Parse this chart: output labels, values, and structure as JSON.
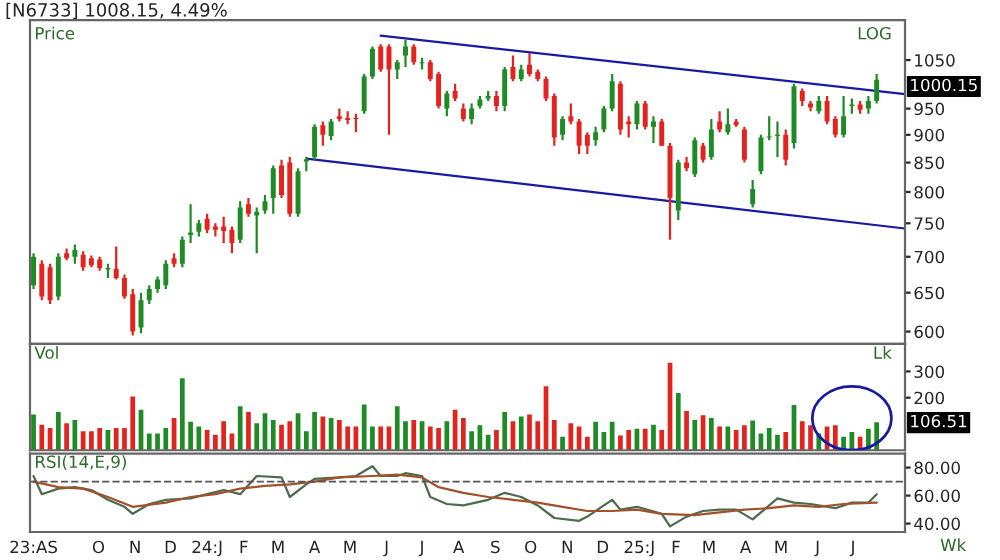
{
  "chart_data": [
    {
      "type": "candlestick",
      "title": "[N6733] 1008.15, 4.49%",
      "log": true,
      "tick_labels": "y",
      "colors": [
        "#1f8b24",
        "#e3231d",
        "#e3231d",
        "#1f8b24",
        "#e3231d",
        "#1f8b24",
        "#e3231d",
        "#e3231d",
        "#e3231d",
        "#1f8b24",
        "#e3231d",
        "#e3231d",
        "#e3231d",
        "#1f8b24",
        "#1f8b24",
        "#1f8b24",
        "#1f8b24",
        "#e3231d",
        "#1f8b24",
        "#1f8b24",
        "#1f8b24",
        "#e3231d",
        "#e3231d",
        "#e3231d",
        "#e3231d",
        "#1f8b24",
        "#e3231d",
        "#1f8b24",
        "#1f8b24",
        "#1f8b24",
        "#e3231d",
        "#e3231d",
        "#1f8b24",
        "#1f8b24",
        "#1f8b24",
        "#e3231d",
        "#1f8b24",
        "#e3231d",
        "#e3231d",
        "#e3231d",
        "#1f8b24",
        "#1f8b24",
        "#e3231d",
        "#e3231d",
        "#1f8b24",
        "#1f8b24",
        "#e3231d",
        "#1f8b24",
        "#e3231d",
        "#e3231d",
        "#1f8b24",
        "#e3231d",
        "#e3231d",
        "#1f8b24",
        "#1f8b24",
        "#1f8b24",
        "#e3231d",
        "#1f8b24",
        "#e3231d",
        "#1f8b24",
        "#e3231d",
        "#e3231d",
        "#e3231d",
        "#e3231d",
        "#1f8b24",
        "#e3231d",
        "#e3231d",
        "#e3231d",
        "#1f8b24",
        "#1f8b24",
        "#1f8b24",
        "#e3231d",
        "#e3231d",
        "#1f8b24",
        "#e3231d",
        "#1f8b24",
        "#e3231d",
        "#e3231d",
        "#1f8b24",
        "#e3231d",
        "#1f8b24",
        "#e3231d",
        "#1f8b24",
        "#e3231d",
        "#1f8b24",
        "#e3231d",
        "#e3231d",
        "#1f8b24",
        "#1f8b24",
        "#1f8b24",
        "#1f8b24",
        "#e3231d",
        "#1f8b24",
        "#e3231d",
        "#e3231d",
        "#1f8b24",
        "#e3231d",
        "#e3231d",
        "#1f8b24",
        "#1f8b24",
        "#e3231d",
        "#1f8b24",
        "#1f8b24"
      ],
      "x": [
        "2023-08-07",
        "2023-08-14",
        "2023-08-21",
        "2023-08-28",
        "2023-09-04",
        "2023-09-11",
        "2023-09-18",
        "2023-09-25",
        "2023-10-02",
        "2023-10-09",
        "2023-10-16",
        "2023-10-23",
        "2023-10-30",
        "2023-11-06",
        "2023-11-13",
        "2023-11-20",
        "2023-11-27",
        "2023-12-04",
        "2023-12-11",
        "2023-12-18",
        "2023-12-25",
        "2024-01-01",
        "2024-01-08",
        "2024-01-15",
        "2024-01-22",
        "2024-01-29",
        "2024-02-05",
        "2024-02-12",
        "2024-02-19",
        "2024-02-26",
        "2024-03-04",
        "2024-03-11",
        "2024-03-18",
        "2024-03-25",
        "2024-04-01",
        "2024-04-08",
        "2024-04-15",
        "2024-04-22",
        "2024-04-29",
        "2024-05-06",
        "2024-05-13",
        "2024-05-20",
        "2024-05-27",
        "2024-06-03",
        "2024-06-10",
        "2024-06-17",
        "2024-06-24",
        "2024-07-01",
        "2024-07-08",
        "2024-07-15",
        "2024-07-22",
        "2024-07-29",
        "2024-08-05",
        "2024-08-12",
        "2024-08-19",
        "2024-08-26",
        "2024-09-02",
        "2024-09-09",
        "2024-09-16",
        "2024-09-23",
        "2024-09-30",
        "2024-10-07",
        "2024-10-14",
        "2024-10-21",
        "2024-10-28",
        "2024-11-04",
        "2024-11-11",
        "2024-11-18",
        "2024-11-25",
        "2024-12-02",
        "2024-12-09",
        "2024-12-16",
        "2024-12-23",
        "2024-12-30",
        "2025-01-06",
        "2025-01-13",
        "2025-01-20",
        "2025-01-27",
        "2025-02-03",
        "2025-02-10",
        "2025-02-17",
        "2025-02-24",
        "2025-03-03",
        "2025-03-10",
        "2025-03-17",
        "2025-03-24",
        "2025-03-31",
        "2025-04-07",
        "2025-04-14",
        "2025-04-21",
        "2025-04-28",
        "2025-05-05",
        "2025-05-12",
        "2025-05-19",
        "2025-05-26",
        "2025-06-02",
        "2025-06-09",
        "2025-06-16",
        "2025-06-23",
        "2025-06-30",
        "2025-07-07",
        "2025-07-14",
        "2025-07-21"
      ],
      "ohlc": [
        [
          660,
          705,
          655,
          700
        ],
        [
          690,
          695,
          640,
          645
        ],
        [
          685,
          690,
          635,
          640
        ],
        [
          645,
          705,
          640,
          700
        ],
        [
          705,
          712,
          695,
          698
        ],
        [
          700,
          718,
          690,
          710
        ],
        [
          703,
          708,
          680,
          685
        ],
        [
          698,
          702,
          685,
          688
        ],
        [
          696,
          700,
          680,
          684
        ],
        [
          682,
          690,
          670,
          684
        ],
        [
          683,
          715,
          668,
          670
        ],
        [
          670,
          675,
          642,
          645
        ],
        [
          648,
          655,
          595,
          600
        ],
        [
          605,
          650,
          598,
          640
        ],
        [
          640,
          660,
          635,
          655
        ],
        [
          655,
          672,
          650,
          668
        ],
        [
          660,
          695,
          655,
          690
        ],
        [
          698,
          705,
          685,
          690
        ],
        [
          690,
          730,
          685,
          725
        ],
        [
          732,
          780,
          720,
          736
        ],
        [
          737,
          755,
          730,
          750
        ],
        [
          757,
          765,
          735,
          740
        ],
        [
          745,
          750,
          730,
          740
        ],
        [
          745,
          760,
          720,
          738
        ],
        [
          740,
          745,
          705,
          720
        ],
        [
          725,
          785,
          720,
          775
        ],
        [
          780,
          790,
          760,
          765
        ],
        [
          762,
          775,
          705,
          768
        ],
        [
          770,
          795,
          765,
          785
        ],
        [
          790,
          845,
          765,
          840
        ],
        [
          845,
          855,
          790,
          795
        ],
        [
          850,
          860,
          760,
          765
        ],
        [
          765,
          840,
          760,
          835
        ],
        [
          852,
          860,
          835,
          856
        ],
        [
          860,
          920,
          855,
          915
        ],
        [
          918,
          925,
          880,
          900
        ],
        [
          898,
          930,
          890,
          925
        ],
        [
          935,
          950,
          925,
          930
        ],
        [
          932,
          945,
          920,
          928
        ],
        [
          932,
          940,
          905,
          930
        ],
        [
          945,
          1020,
          940,
          1015
        ],
        [
          1015,
          1080,
          1010,
          1075
        ],
        [
          1080,
          1085,
          1025,
          1030
        ],
        [
          1080,
          1085,
          900,
          1030
        ],
        [
          1030,
          1050,
          1010,
          1045
        ],
        [
          1060,
          1095,
          1035,
          1080
        ],
        [
          1080,
          1085,
          1040,
          1045
        ],
        [
          1043,
          1055,
          1030,
          1045
        ],
        [
          1045,
          1050,
          1005,
          1010
        ],
        [
          1020,
          1025,
          950,
          955
        ],
        [
          950,
          985,
          935,
          980
        ],
        [
          985,
          1000,
          965,
          970
        ],
        [
          950,
          960,
          925,
          930
        ],
        [
          930,
          960,
          920,
          950
        ],
        [
          955,
          975,
          950,
          968
        ],
        [
          970,
          985,
          965,
          975
        ],
        [
          975,
          985,
          945,
          955
        ],
        [
          955,
          1035,
          945,
          1030
        ],
        [
          1035,
          1060,
          1005,
          1010
        ],
        [
          1010,
          1040,
          1005,
          1030
        ],
        [
          1040,
          1065,
          1015,
          1020
        ],
        [
          1025,
          1030,
          1005,
          1010
        ],
        [
          1010,
          1015,
          965,
          970
        ],
        [
          975,
          980,
          880,
          895
        ],
        [
          900,
          935,
          890,
          930
        ],
        [
          935,
          960,
          920,
          925
        ],
        [
          925,
          930,
          865,
          880
        ],
        [
          900,
          905,
          865,
          880
        ],
        [
          890,
          915,
          880,
          905
        ],
        [
          910,
          955,
          905,
          950
        ],
        [
          950,
          1020,
          945,
          1005
        ],
        [
          1000,
          1005,
          900,
          910
        ],
        [
          925,
          935,
          895,
          920
        ],
        [
          920,
          965,
          910,
          960
        ],
        [
          960,
          965,
          910,
          915
        ],
        [
          915,
          935,
          885,
          925
        ],
        [
          925,
          930,
          880,
          880
        ],
        [
          880,
          885,
          725,
          790
        ],
        [
          770,
          855,
          755,
          850
        ],
        [
          850,
          860,
          835,
          840
        ],
        [
          830,
          895,
          825,
          890
        ],
        [
          880,
          885,
          850,
          855
        ],
        [
          860,
          930,
          855,
          910
        ],
        [
          925,
          945,
          905,
          910
        ],
        [
          905,
          950,
          900,
          920
        ],
        [
          925,
          930,
          915,
          918
        ],
        [
          910,
          915,
          850,
          855
        ],
        [
          780,
          820,
          775,
          805
        ],
        [
          835,
          900,
          830,
          895
        ],
        [
          895,
          935,
          890,
          897
        ],
        [
          898,
          925,
          860,
          900
        ],
        [
          900,
          910,
          845,
          855
        ],
        [
          885,
          1000,
          875,
          995
        ],
        [
          985,
          990,
          955,
          965
        ],
        [
          960,
          965,
          945,
          952
        ],
        [
          945,
          975,
          940,
          965
        ],
        [
          965,
          975,
          920,
          925
        ],
        [
          930,
          935,
          895,
          900
        ],
        [
          900,
          975,
          895,
          935
        ],
        [
          955,
          970,
          940,
          958
        ],
        [
          958,
          965,
          940,
          948
        ],
        [
          950,
          975,
          940,
          965
        ],
        [
          965,
          1020,
          960,
          1008.15
        ]
      ],
      "series": [
        {
          "type": "line",
          "color": "#1a1aa0",
          "x": [
            "2024-05-27",
            "2025-08-14"
          ],
          "values": [
            1104,
            979
          ]
        },
        {
          "type": "line",
          "color": "#1a1aa0",
          "x": [
            "2024-03-25",
            "2025-08-14"
          ],
          "values": [
            857,
            742
          ]
        }
      ],
      "xlim": [
        "2023-08-04",
        "2025-08-14"
      ],
      "ylim": [
        585,
        1140
      ],
      "yticks": [
        600,
        650,
        700,
        750,
        800,
        850,
        900,
        950,
        1050
      ],
      "annotations": [
        "Price",
        "LOG",
        "1000.15"
      ]
    },
    {
      "type": "bar",
      "tick_labels": "y",
      "x": [
        "2023-08-07",
        "2023-08-14",
        "2023-08-21",
        "2023-08-28",
        "2023-09-04",
        "2023-09-11",
        "2023-09-18",
        "2023-09-25",
        "2023-10-02",
        "2023-10-09",
        "2023-10-16",
        "2023-10-23",
        "2023-10-30",
        "2023-11-06",
        "2023-11-13",
        "2023-11-20",
        "2023-11-27",
        "2023-12-04",
        "2023-12-11",
        "2023-12-18",
        "2023-12-25",
        "2024-01-01",
        "2024-01-08",
        "2024-01-15",
        "2024-01-22",
        "2024-01-29",
        "2024-02-05",
        "2024-02-12",
        "2024-02-19",
        "2024-02-26",
        "2024-03-04",
        "2024-03-11",
        "2024-03-18",
        "2024-03-25",
        "2024-04-01",
        "2024-04-08",
        "2024-04-15",
        "2024-04-22",
        "2024-04-29",
        "2024-05-06",
        "2024-05-13",
        "2024-05-20",
        "2024-05-27",
        "2024-06-03",
        "2024-06-10",
        "2024-06-17",
        "2024-06-24",
        "2024-07-01",
        "2024-07-08",
        "2024-07-15",
        "2024-07-22",
        "2024-07-29",
        "2024-08-05",
        "2024-08-12",
        "2024-08-19",
        "2024-08-26",
        "2024-09-02",
        "2024-09-09",
        "2024-09-16",
        "2024-09-23",
        "2024-09-30",
        "2024-10-07",
        "2024-10-14",
        "2024-10-21",
        "2024-10-28",
        "2024-11-04",
        "2024-11-11",
        "2024-11-18",
        "2024-11-25",
        "2024-12-02",
        "2024-12-09",
        "2024-12-16",
        "2024-12-23",
        "2024-12-30",
        "2025-01-06",
        "2025-01-13",
        "2025-01-20",
        "2025-01-27",
        "2025-02-03",
        "2025-02-10",
        "2025-02-17",
        "2025-02-24",
        "2025-03-03",
        "2025-03-10",
        "2025-03-17",
        "2025-03-24",
        "2025-03-31",
        "2025-04-07",
        "2025-04-14",
        "2025-04-21",
        "2025-04-28",
        "2025-05-05",
        "2025-05-12",
        "2025-05-19",
        "2025-05-26",
        "2025-06-02",
        "2025-06-09",
        "2025-06-16",
        "2025-06-23",
        "2025-06-30",
        "2025-07-07",
        "2025-07-14",
        "2025-07-21"
      ],
      "values": [
        136,
        97,
        85,
        146,
        103,
        115,
        72,
        72,
        85,
        77,
        85,
        85,
        205,
        154,
        64,
        64,
        85,
        123,
        274,
        108,
        90,
        77,
        59,
        110,
        64,
        167,
        146,
        103,
        141,
        115,
        97,
        110,
        141,
        72,
        146,
        128,
        123,
        115,
        90,
        90,
        174,
        90,
        90,
        90,
        167,
        110,
        115,
        110,
        90,
        85,
        110,
        154,
        123,
        72,
        95,
        59,
        77,
        146,
        110,
        128,
        136,
        110,
        244,
        115,
        51,
        103,
        90,
        51,
        108,
        69,
        108,
        56,
        77,
        82,
        82,
        97,
        77,
        333,
        218,
        149,
        115,
        133,
        123,
        90,
        90,
        77,
        95,
        113,
        64,
        85,
        59,
        69,
        172,
        110,
        95,
        64,
        90,
        95,
        51,
        69,
        51,
        82,
        107
      ],
      "colors": [
        "#1f8b24",
        "#e3231d",
        "#e3231d",
        "#1f8b24",
        "#e3231d",
        "#1f8b24",
        "#e3231d",
        "#e3231d",
        "#e3231d",
        "#1f8b24",
        "#e3231d",
        "#e3231d",
        "#e3231d",
        "#1f8b24",
        "#1f8b24",
        "#1f8b24",
        "#1f8b24",
        "#e3231d",
        "#1f8b24",
        "#1f8b24",
        "#1f8b24",
        "#e3231d",
        "#e3231d",
        "#e3231d",
        "#e3231d",
        "#1f8b24",
        "#e3231d",
        "#1f8b24",
        "#1f8b24",
        "#1f8b24",
        "#e3231d",
        "#e3231d",
        "#1f8b24",
        "#1f8b24",
        "#1f8b24",
        "#e3231d",
        "#1f8b24",
        "#e3231d",
        "#e3231d",
        "#e3231d",
        "#1f8b24",
        "#1f8b24",
        "#e3231d",
        "#e3231d",
        "#1f8b24",
        "#1f8b24",
        "#e3231d",
        "#1f8b24",
        "#e3231d",
        "#e3231d",
        "#1f8b24",
        "#e3231d",
        "#e3231d",
        "#1f8b24",
        "#1f8b24",
        "#1f8b24",
        "#e3231d",
        "#1f8b24",
        "#e3231d",
        "#1f8b24",
        "#e3231d",
        "#e3231d",
        "#e3231d",
        "#e3231d",
        "#1f8b24",
        "#e3231d",
        "#e3231d",
        "#e3231d",
        "#1f8b24",
        "#1f8b24",
        "#1f8b24",
        "#e3231d",
        "#e3231d",
        "#1f8b24",
        "#e3231d",
        "#1f8b24",
        "#e3231d",
        "#e3231d",
        "#1f8b24",
        "#e3231d",
        "#1f8b24",
        "#e3231d",
        "#1f8b24",
        "#e3231d",
        "#1f8b24",
        "#e3231d",
        "#e3231d",
        "#1f8b24",
        "#1f8b24",
        "#1f8b24",
        "#1f8b24",
        "#e3231d",
        "#1f8b24",
        "#e3231d",
        "#e3231d",
        "#1f8b24",
        "#e3231d",
        "#e3231d",
        "#1f8b24",
        "#1f8b24",
        "#e3231d",
        "#1f8b24",
        "#1f8b24"
      ],
      "xlim": [
        "2023-08-04",
        "2025-08-14"
      ],
      "ylim": [
        0,
        405
      ],
      "yticks": [
        200,
        300
      ],
      "annotations": [
        "Vol",
        "Lk",
        "106.51"
      ]
    },
    {
      "type": "line",
      "xlim": [
        "2023-08-04",
        "2025-08-14"
      ],
      "ylim": [
        34,
        90
      ],
      "yticks": [
        {
          "value": 40,
          "label": "40.00"
        },
        {
          "value": 60,
          "label": "60.00"
        },
        {
          "value": 80,
          "label": "80.00"
        }
      ],
      "xticks": [
        {
          "value": "2023-08-07",
          "label": "23:AS"
        },
        {
          "value": "2023-10-01",
          "label": "O"
        },
        {
          "value": "2023-11-01",
          "label": "N"
        },
        {
          "value": "2023-12-01",
          "label": "D"
        },
        {
          "value": "2024-01-01",
          "label": "24:J"
        },
        {
          "value": "2024-02-01",
          "label": "F"
        },
        {
          "value": "2024-03-01",
          "label": "M"
        },
        {
          "value": "2024-04-01",
          "label": "A"
        },
        {
          "value": "2024-05-01",
          "label": "M"
        },
        {
          "value": "2024-06-01",
          "label": "J"
        },
        {
          "value": "2024-07-01",
          "label": "J"
        },
        {
          "value": "2024-08-01",
          "label": "A"
        },
        {
          "value": "2024-09-01",
          "label": "S"
        },
        {
          "value": "2024-10-01",
          "label": "O"
        },
        {
          "value": "2024-11-01",
          "label": "N"
        },
        {
          "value": "2024-12-01",
          "label": "D"
        },
        {
          "value": "2025-01-01",
          "label": "25:J"
        },
        {
          "value": "2025-02-01",
          "label": "F"
        },
        {
          "value": "2025-03-01",
          "label": "M"
        },
        {
          "value": "2025-04-01",
          "label": "A"
        },
        {
          "value": "2025-05-01",
          "label": "M"
        },
        {
          "value": "2025-06-01",
          "label": "J"
        },
        {
          "value": "2025-07-01",
          "label": "J"
        }
      ],
      "series": [
        {
          "color": "#4d6b4d",
          "x": [
            "2023-08-07",
            "2023-08-14",
            "2023-08-28",
            "2023-09-11",
            "2023-09-25",
            "2023-10-09",
            "2023-10-23",
            "2023-10-30",
            "2023-11-13",
            "2023-11-27",
            "2023-12-18",
            "2024-01-01",
            "2024-01-15",
            "2024-01-29",
            "2024-02-12",
            "2024-03-04",
            "2024-03-11",
            "2024-03-25",
            "2024-04-01",
            "2024-04-22",
            "2024-05-06",
            "2024-05-20",
            "2024-05-27",
            "2024-06-10",
            "2024-06-17",
            "2024-07-01",
            "2024-07-08",
            "2024-07-22",
            "2024-08-05",
            "2024-08-26",
            "2024-09-09",
            "2024-09-23",
            "2024-10-07",
            "2024-10-21",
            "2024-11-11",
            "2024-11-18",
            "2024-12-02",
            "2024-12-09",
            "2024-12-16",
            "2024-12-30",
            "2025-01-20",
            "2025-01-27",
            "2025-02-10",
            "2025-02-24",
            "2025-03-10",
            "2025-03-24",
            "2025-04-07",
            "2025-04-28",
            "2025-05-12",
            "2025-05-26",
            "2025-06-16",
            "2025-06-30",
            "2025-07-14",
            "2025-07-21"
          ],
          "values": [
            74,
            61,
            65,
            66,
            64,
            57,
            52,
            47,
            54,
            57,
            58,
            61,
            64,
            61,
            74,
            73,
            59,
            68,
            72,
            73,
            74,
            81,
            74,
            74,
            76,
            74,
            59,
            54,
            53,
            57,
            62,
            59,
            53,
            44,
            42,
            45,
            53,
            57,
            50,
            52,
            47,
            38,
            45,
            49,
            50,
            50,
            43,
            58,
            55,
            54,
            51,
            55,
            55,
            61
          ]
        },
        {
          "color": "#a0522d",
          "x": [
            "2023-08-07",
            "2023-08-28",
            "2023-09-18",
            "2023-10-09",
            "2023-10-30",
            "2023-11-27",
            "2023-12-18",
            "2024-01-08",
            "2024-01-29",
            "2024-02-19",
            "2024-03-11",
            "2024-04-01",
            "2024-04-22",
            "2024-05-20",
            "2024-06-10",
            "2024-07-01",
            "2024-07-15",
            "2024-08-05",
            "2024-08-26",
            "2024-09-16",
            "2024-10-07",
            "2024-10-28",
            "2024-11-18",
            "2024-12-09",
            "2024-12-30",
            "2025-01-20",
            "2025-02-17",
            "2025-03-10",
            "2025-03-31",
            "2025-04-21",
            "2025-05-12",
            "2025-06-02",
            "2025-06-23",
            "2025-07-21"
          ],
          "values": [
            70,
            66,
            65,
            59,
            52,
            55,
            59,
            61,
            65,
            67,
            68,
            70,
            73,
            74,
            75,
            73,
            66,
            62,
            59,
            57,
            55,
            52,
            49,
            49,
            50,
            47,
            46,
            48,
            50,
            51,
            53,
            52,
            54,
            55
          ]
        }
      ],
      "ref_lines": [
        {
          "axis": "y",
          "value": 70,
          "color": "#555555",
          "line_style": "dashed"
        }
      ],
      "annotations": [
        "RSI(14,E,9)",
        "Wk"
      ]
    }
  ]
}
